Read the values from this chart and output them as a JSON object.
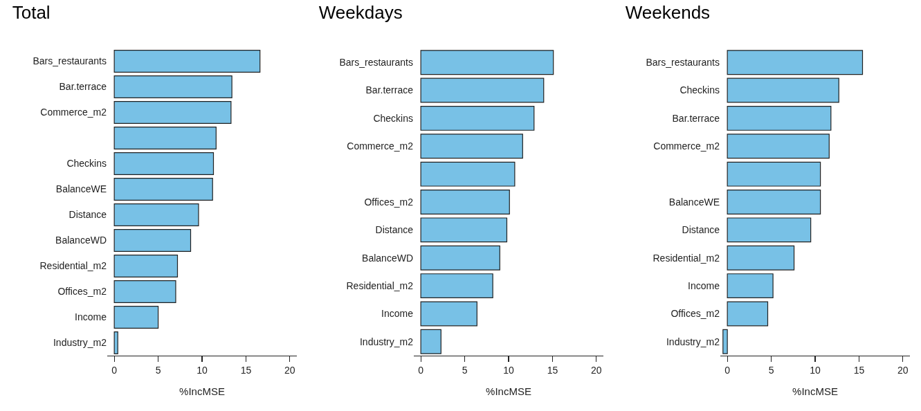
{
  "chart_data": [
    {
      "type": "bar",
      "orientation": "horizontal",
      "title": "Total",
      "xlabel": "%IncMSE",
      "color": "#78c1e6",
      "grid": false,
      "xlim": [
        -0.8,
        20.8
      ],
      "xticks": [
        0,
        5,
        10,
        15,
        20
      ],
      "categories": [
        "Bars_restaurants",
        "Bar.terrace",
        "Commerce_m2",
        null,
        "Checkins",
        "BalanceWE",
        "Distance",
        "BalanceWD",
        "Residential_m2",
        "Offices_m2",
        "Income",
        "Industry_m2"
      ],
      "values": [
        16.6,
        13.4,
        13.3,
        11.6,
        11.3,
        11.2,
        9.6,
        8.7,
        7.2,
        7.0,
        5.0,
        0.4
      ]
    },
    {
      "type": "bar",
      "orientation": "horizontal",
      "title": "Weekdays",
      "xlabel": "%IncMSE",
      "color": "#78c1e6",
      "grid": false,
      "xlim": [
        -0.8,
        20.8
      ],
      "xticks": [
        0,
        5,
        10,
        15,
        20
      ],
      "categories": [
        "Bars_restaurants",
        "Bar.terrace",
        "Checkins",
        "Commerce_m2",
        null,
        "Offices_m2",
        "Distance",
        "BalanceWD",
        "Residential_m2",
        "Income",
        "Industry_m2"
      ],
      "values": [
        15.1,
        14.0,
        12.9,
        11.6,
        10.7,
        10.1,
        9.8,
        9.0,
        8.2,
        6.4,
        2.3
      ]
    },
    {
      "type": "bar",
      "orientation": "horizontal",
      "title": "Weekends",
      "xlabel": "%IncMSE",
      "color": "#78c1e6",
      "grid": false,
      "xlim": [
        -0.8,
        20.8
      ],
      "xticks": [
        0,
        5,
        10,
        15,
        20
      ],
      "categories": [
        "Bars_restaurants",
        "Checkins",
        "Bar.terrace",
        "Commerce_m2",
        null,
        "BalanceWE",
        "Distance",
        "Residential_m2",
        "Income",
        "Offices_m2",
        "Industry_m2"
      ],
      "values": [
        15.4,
        12.7,
        11.8,
        11.6,
        10.6,
        10.6,
        9.5,
        7.6,
        5.2,
        4.6,
        -0.5
      ]
    }
  ]
}
